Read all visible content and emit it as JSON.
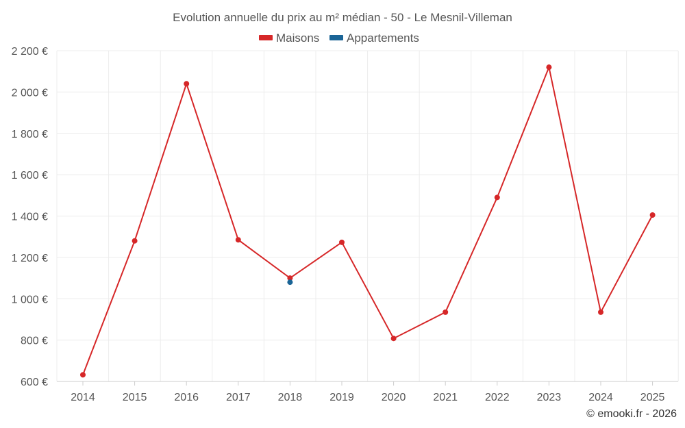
{
  "chart_data": {
    "type": "line",
    "title": "Evolution annuelle du prix au m² médian - 50 - Le Mesnil-Villeman",
    "x": [
      "2014",
      "2015",
      "2016",
      "2017",
      "2018",
      "2019",
      "2020",
      "2021",
      "2022",
      "2023",
      "2024",
      "2025"
    ],
    "y_ticks": [
      "600 €",
      "800 €",
      "1 000 €",
      "1 200 €",
      "1 400 €",
      "1 600 €",
      "1 800 €",
      "2 000 €",
      "2 200 €"
    ],
    "ylim": [
      600,
      2200
    ],
    "grid": true,
    "legend_position": "top-center",
    "series": [
      {
        "name": "Maisons",
        "color": "#d62728",
        "values": [
          632,
          1280,
          2040,
          1285,
          1100,
          1273,
          808,
          935,
          1490,
          2120,
          935,
          1405
        ]
      },
      {
        "name": "Appartements",
        "color": "#1a6496",
        "values": [
          null,
          null,
          null,
          null,
          1080,
          null,
          null,
          null,
          null,
          null,
          null,
          null
        ]
      }
    ]
  },
  "credit": "© emooki.fr - 2026"
}
